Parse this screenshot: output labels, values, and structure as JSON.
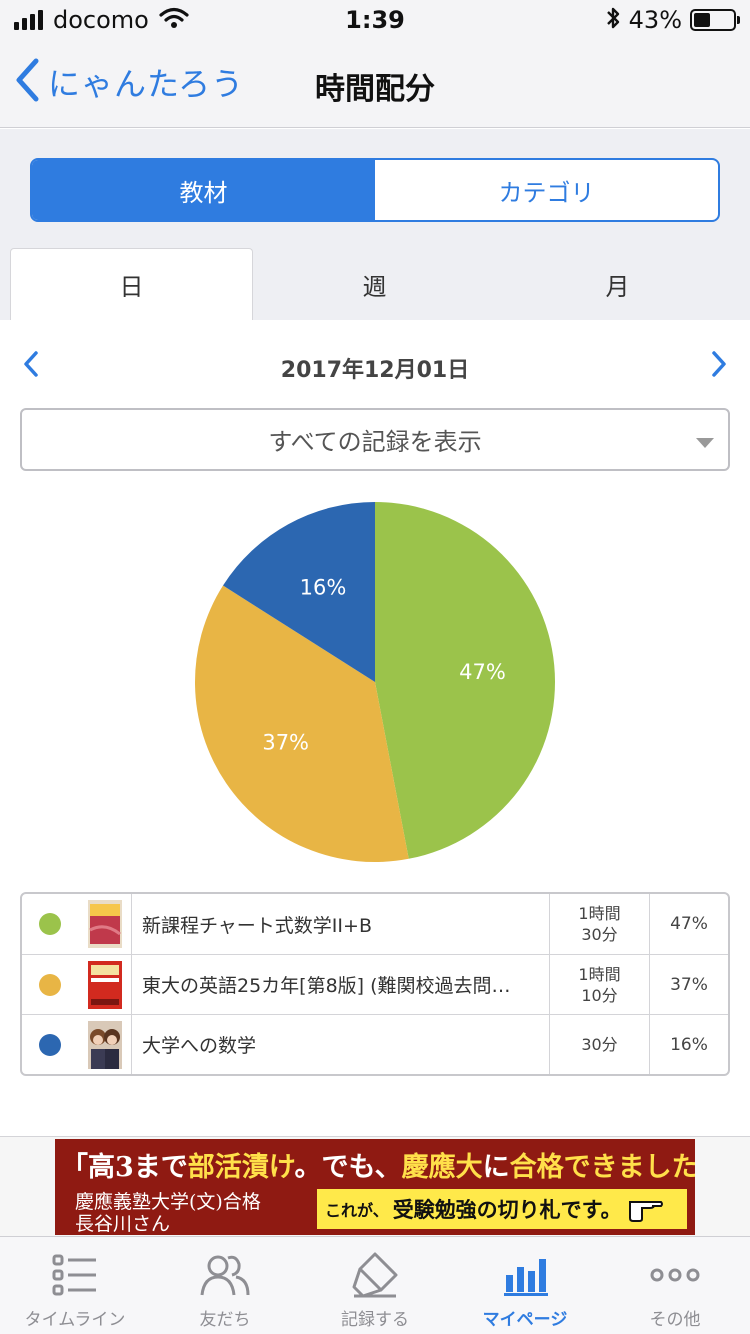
{
  "status_bar": {
    "carrier": "docomo",
    "time": "1:39",
    "battery_pct": "43%",
    "battery_level": 0.43
  },
  "nav": {
    "back_label": "にゃんたろう",
    "title": "時間配分"
  },
  "segment": {
    "items": [
      "教材",
      "カテゴリ"
    ],
    "selected": 0
  },
  "period_tabs": {
    "items": [
      "日",
      "週",
      "月"
    ],
    "selected": 0
  },
  "date_nav": {
    "date": "2017年12月01日"
  },
  "filter": {
    "selected": "すべての記録を表示"
  },
  "chart_data": {
    "type": "pie",
    "slices": [
      {
        "label": "新課程チャート式数学II+B",
        "value": 47,
        "display": "47%",
        "color": "#9bc34b"
      },
      {
        "label": "東大の英語25カ年[第8版] (難関校過去問…",
        "value": 37,
        "display": "37%",
        "color": "#e8b545"
      },
      {
        "label": "大学への数学",
        "value": 16,
        "display": "16%",
        "color": "#2c67b1"
      }
    ]
  },
  "legend": {
    "rows": [
      {
        "title": "新課程チャート式数学II+B",
        "time_line1": "1時間",
        "time_line2": "30分",
        "pct": "47%",
        "color": "#9bc34b"
      },
      {
        "title": "東大の英語25カ年[第8版] (難関校過去問…",
        "time_line1": "1時間",
        "time_line2": "10分",
        "pct": "37%",
        "color": "#e8b545"
      },
      {
        "title": "大学への数学",
        "time_line1": "30分",
        "time_line2": "",
        "pct": "16%",
        "color": "#2c67b1"
      }
    ]
  },
  "ad": {
    "headline_1": "「高3まで",
    "headline_2": "部活漬け",
    "headline_3": "。でも、",
    "headline_4": "慶應大",
    "headline_5": "に",
    "headline_6": "合格できました！",
    "headline_7": "」",
    "sub_1": "慶應義塾大学(文)合格",
    "sub_2": "長谷川さん",
    "cta_small": "これが、",
    "cta_big": "受験勉強の切り札です。"
  },
  "tabbar": {
    "items": [
      {
        "label": "タイムライン",
        "icon": "timeline-icon"
      },
      {
        "label": "友だち",
        "icon": "friends-icon"
      },
      {
        "label": "記録する",
        "icon": "record-icon"
      },
      {
        "label": "マイページ",
        "icon": "mypage-icon"
      },
      {
        "label": "その他",
        "icon": "more-icon"
      }
    ],
    "selected": 3
  },
  "colors": {
    "accent": "#2f7ce0",
    "ad_bg": "#8f1a12",
    "ad_highlight": "#ffe04a"
  }
}
